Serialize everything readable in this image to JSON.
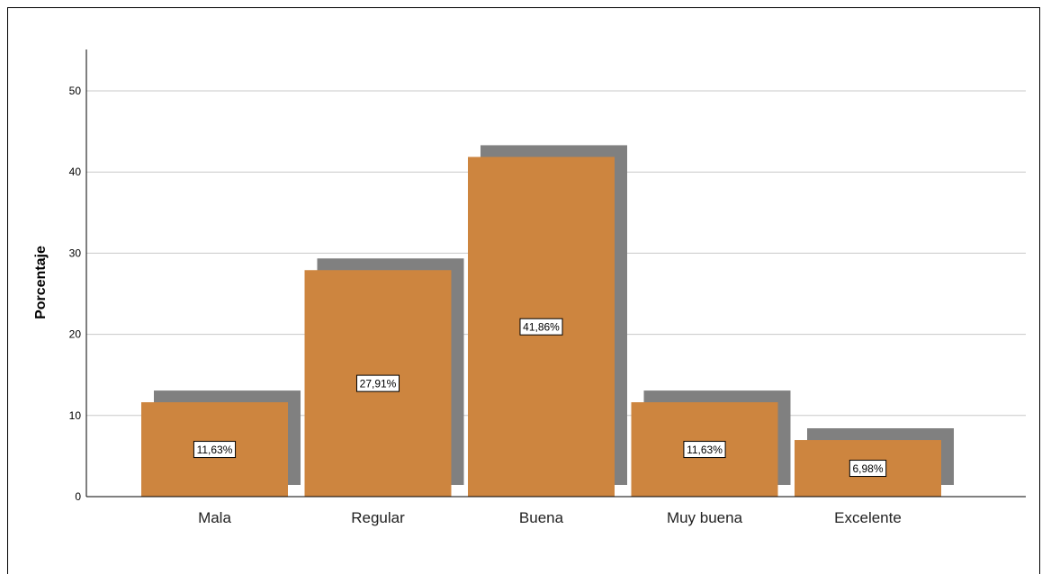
{
  "chart_data": {
    "type": "bar",
    "title": "",
    "xlabel": "",
    "ylabel": "Porcentaje",
    "ylim": [
      0,
      55
    ],
    "yticks": [
      0,
      10,
      20,
      30,
      40,
      50
    ],
    "grid": true,
    "style": "3d-shadow",
    "categories": [
      "Mala",
      "Regular",
      "Buena",
      "Muy buena",
      "Excelente"
    ],
    "values": [
      11.63,
      27.91,
      41.86,
      11.63,
      6.98
    ],
    "data_labels": [
      "11,63%",
      "27,91%",
      "41,86%",
      "11,63%",
      "6,98%"
    ],
    "colors": {
      "bar": "#CD853F",
      "shadow": "#808080",
      "grid": "#C8C8C8",
      "axis": "#000000"
    }
  }
}
